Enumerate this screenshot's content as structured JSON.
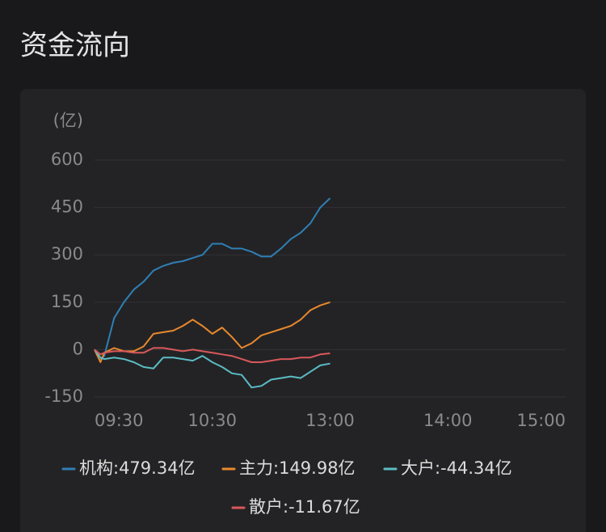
{
  "chart_data": {
    "type": "line",
    "title": "资金流向",
    "y_label": "(亿)",
    "x": [
      0,
      3,
      5,
      10,
      15,
      20,
      25,
      30,
      35,
      40,
      45,
      50,
      55,
      60,
      65,
      70,
      75,
      80,
      85,
      90,
      95,
      100,
      105,
      110,
      115,
      120
    ],
    "xlim": [
      0,
      240
    ],
    "xticks": [
      {
        "value": 0,
        "label": "09:30"
      },
      {
        "value": 60,
        "label": "10:30"
      },
      {
        "value": 120,
        "label": "13:00"
      },
      {
        "value": 180,
        "label": "14:00"
      },
      {
        "value": 240,
        "label": "15:00"
      }
    ],
    "ylim": [
      -150,
      600
    ],
    "yticks": [
      -150,
      0,
      150,
      300,
      450,
      600
    ],
    "grid": true,
    "series": [
      {
        "name": "机构:479.34亿",
        "color": "#2f7fb5",
        "values": [
          0,
          -30,
          -20,
          100,
          150,
          190,
          215,
          250,
          265,
          275,
          280,
          290,
          300,
          335,
          335,
          320,
          320,
          310,
          295,
          295,
          320,
          350,
          370,
          400,
          450,
          479.34
        ]
      },
      {
        "name": "主力:149.98亿",
        "color": "#e8892d",
        "values": [
          0,
          -40,
          -10,
          5,
          -5,
          -5,
          10,
          50,
          55,
          60,
          75,
          95,
          75,
          50,
          70,
          40,
          5,
          20,
          45,
          55,
          65,
          75,
          95,
          125,
          140,
          149.98
        ]
      },
      {
        "name": "大户:-44.34亿",
        "color": "#5bbcc4",
        "values": [
          0,
          -25,
          -30,
          -25,
          -30,
          -40,
          -55,
          -60,
          -25,
          -25,
          -30,
          -35,
          -20,
          -40,
          -55,
          -75,
          -80,
          -120,
          -115,
          -95,
          -90,
          -85,
          -90,
          -70,
          -50,
          -44.34
        ]
      },
      {
        "name": "散户:-11.67亿",
        "color": "#d9585b",
        "values": [
          0,
          -15,
          -10,
          -5,
          -5,
          -10,
          -10,
          5,
          5,
          0,
          -5,
          0,
          -5,
          -10,
          -15,
          -20,
          -30,
          -40,
          -40,
          -35,
          -30,
          -30,
          -25,
          -25,
          -15,
          -11.67
        ]
      }
    ]
  }
}
